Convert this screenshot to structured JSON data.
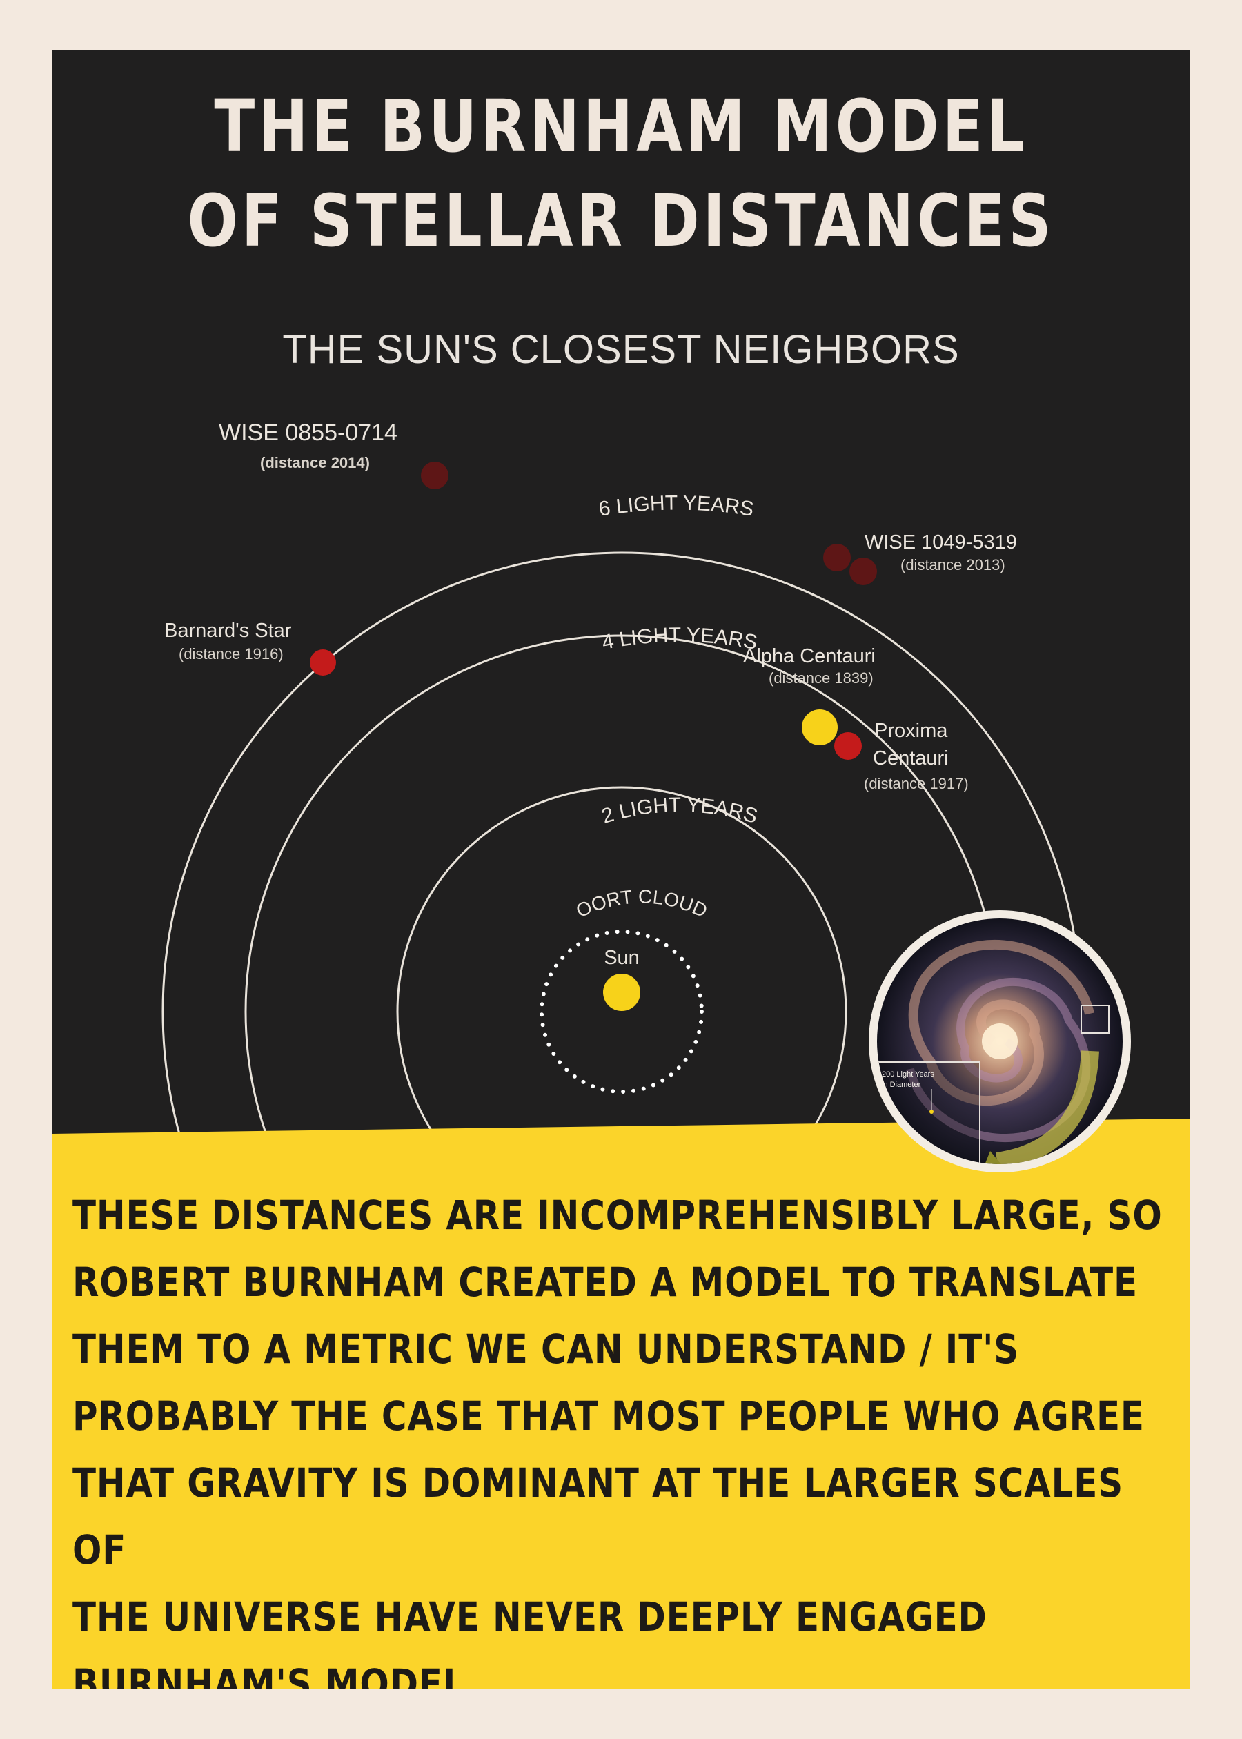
{
  "title": {
    "line1": "THE BURNHAM MODEL",
    "line2": "OF STELLAR DISTANCES"
  },
  "subtitle": "THE SUN'S CLOSEST NEIGHBORS",
  "rings": {
    "six": "6 LIGHT YEARS",
    "four": "4 LIGHT YEARS",
    "two": "2 LIGHT YEARS",
    "oort": "OORT CLOUD"
  },
  "sun": {
    "label": "Sun"
  },
  "stars": {
    "wise0855": {
      "name": "WISE 0855-0714",
      "year": "(distance 2014)"
    },
    "wise1049": {
      "name": "WISE 1049-5319",
      "year": "(distance 2013)"
    },
    "barnard": {
      "name": "Barnard's Star",
      "year": "(distance 1916)"
    },
    "alpha": {
      "name": "Alpha Centauri",
      "year": "(distance 1839)"
    },
    "proxima": {
      "name_line1": "Proxima",
      "name_line2": "Centauri",
      "year": "(distance 1917)"
    }
  },
  "galaxy_inset": {
    "label_line1": "200 Light Years",
    "label_line2": "in Diameter"
  },
  "body_lines": [
    "THESE DISTANCES ARE INCOMPREHENSIBLY LARGE, SO",
    "ROBERT BURNHAM CREATED A MODEL TO TRANSLATE",
    "THEM TO A METRIC WE CAN UNDERSTAND / IT'S",
    "PROBABLY THE CASE THAT MOST PEOPLE WHO AGREE",
    "THAT GRAVITY IS DOMINANT AT THE LARGER SCALES OF",
    "THE UNIVERSE HAVE NEVER DEEPLY ENGAGED",
    "BURNHAM'S MODEL"
  ],
  "colors": {
    "background": "#201f1f",
    "paper": "#f3e9df",
    "yellow": "#fbd42a",
    "red_star": "#c41b1b",
    "dim_red_star": "#5e1616",
    "sun": "#f7d21a"
  }
}
